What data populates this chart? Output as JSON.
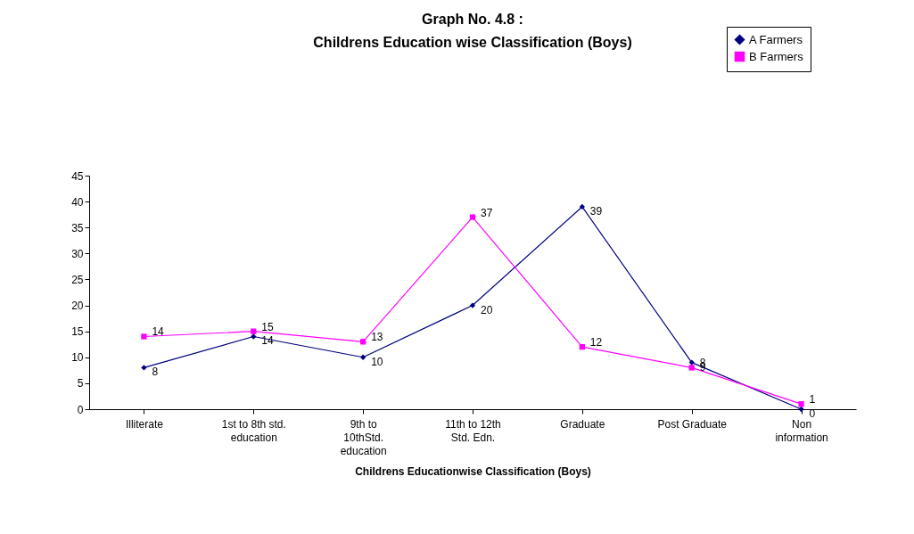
{
  "chart_data": {
    "type": "line",
    "title": [
      "Graph No. 4.8 :",
      "Childrens Education wise Classification (Boys)"
    ],
    "xlabel": "Childrens Educationwise Classification (Boys)",
    "categories": [
      "Illiterate",
      "1st to 8th std.\neducation",
      "9th to\n10thStd.\neducation",
      "11th to 12th\nStd. Edn.",
      "Graduate",
      "Post Graduate",
      "Non\ninformation"
    ],
    "series": [
      {
        "name": "A Farmers",
        "color": "#000080",
        "marker": "diamond",
        "values": [
          8,
          14,
          10,
          20,
          39,
          9,
          0
        ]
      },
      {
        "name": "B Farmers",
        "color": "#ff00ff",
        "marker": "square",
        "values": [
          14,
          15,
          13,
          37,
          12,
          8,
          1
        ]
      }
    ],
    "ylim": [
      0,
      45
    ],
    "yticks": [
      0,
      5,
      10,
      15,
      20,
      25,
      30,
      35,
      40,
      45
    ],
    "grid": false,
    "legend": "top right",
    "data_labels": true
  }
}
